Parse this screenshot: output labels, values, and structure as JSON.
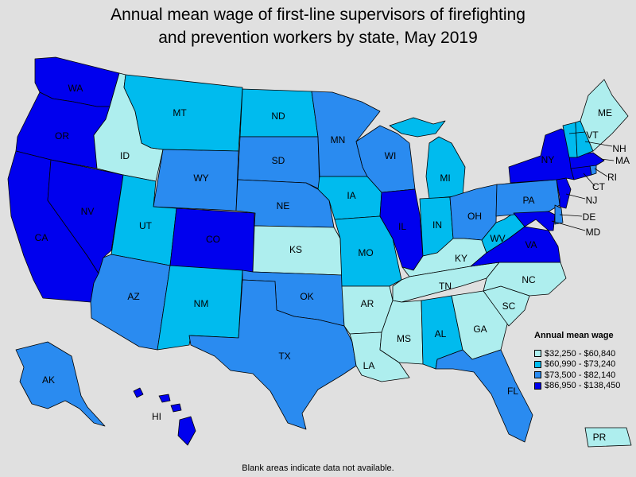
{
  "title_line1": "Annual mean wage of first-line supervisors of firefighting",
  "title_line2": "and prevention workers by state, May 2019",
  "footnote": "Blank areas indicate data not available.",
  "legend": {
    "title": "Annual mean wage",
    "items": [
      {
        "label": "$32,250 - $60,840",
        "color": "#aeeeee"
      },
      {
        "label": "$60,990 - $73,240",
        "color": "#00bbee"
      },
      {
        "label": "$73,500 - $82,140",
        "color": "#2a8bf0"
      },
      {
        "label": "$86,950 - $138,450",
        "color": "#0000ee"
      }
    ]
  },
  "states": {
    "WA": 3,
    "OR": 3,
    "CA": 3,
    "NV": 3,
    "ID": 0,
    "MT": 1,
    "WY": 2,
    "UT": 1,
    "AZ": 2,
    "CO": 3,
    "NM": 1,
    "ND": 1,
    "SD": 2,
    "NE": 2,
    "KS": 0,
    "OK": 2,
    "TX": 2,
    "MN": 2,
    "IA": 1,
    "MO": 1,
    "AR": 0,
    "LA": 0,
    "WI": 2,
    "IL": 3,
    "MI": 1,
    "IN": 1,
    "OH": 2,
    "KY": 0,
    "TN": 0,
    "MS": 0,
    "AL": 1,
    "GA": 0,
    "FL": 2,
    "SC": 0,
    "NC": 0,
    "VA": 3,
    "WV": 1,
    "PA": 2,
    "NY": 3,
    "VT": 1,
    "NH": 1,
    "ME": 0,
    "MA": 3,
    "RI": 2,
    "CT": 3,
    "NJ": 3,
    "DE": 2,
    "MD": 3,
    "AK": 2,
    "HI": 3,
    "PR": 0
  }
}
